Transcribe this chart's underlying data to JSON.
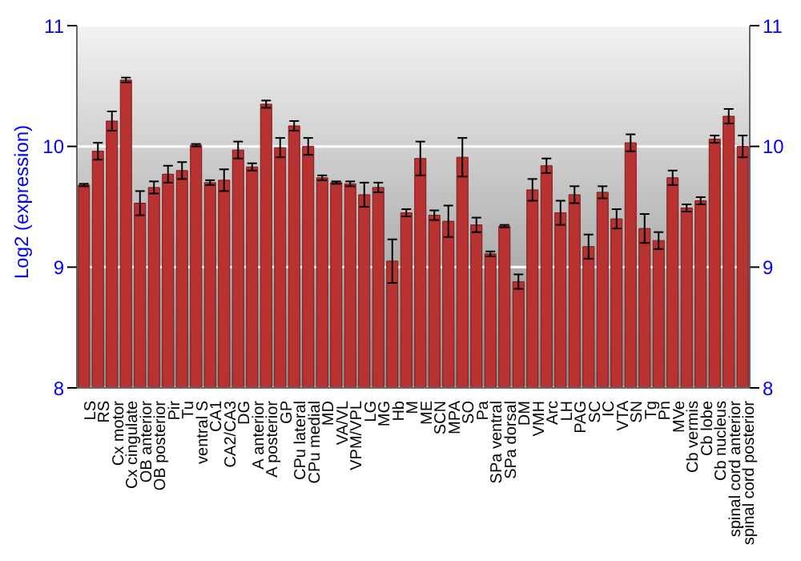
{
  "chart_data": {
    "type": "bar",
    "ylabel": "Log2 (expression)",
    "categories": [
      "LS",
      "RS",
      "Cx motor",
      "Cx cingulate",
      "OB anterior",
      "OB posterior",
      "Pir",
      "Tu",
      "ventral S",
      "CA1",
      "CA2/CA3",
      "DG",
      "A anterior",
      "A posterior",
      "GP",
      "CPu lateral",
      "CPu medial",
      "MD",
      "VA/VL",
      "VPM/VPL",
      "LG",
      "MG",
      "Hb",
      "M",
      "ME",
      "SCN",
      "MPA",
      "SO",
      "Pa",
      "SPa ventral",
      "SPa dorsal",
      "DM",
      "VMH",
      "Arc",
      "LH",
      "PAG",
      "SC",
      "IC",
      "VTA",
      "SN",
      "Tg",
      "Pn",
      "MVe",
      "Cb vermis",
      "Cb lobe",
      "Cb nucleus",
      "spinal cord anterior",
      "spinal cord posterior"
    ],
    "series": [
      {
        "color": "#b83232",
        "values": [
          9.68,
          9.96,
          10.21,
          10.55,
          9.53,
          9.66,
          9.77,
          9.8,
          10.01,
          9.7,
          9.72,
          9.97,
          9.83,
          10.35,
          9.99,
          10.17,
          10.0,
          9.74,
          9.7,
          9.69,
          9.6,
          9.66,
          9.05,
          9.45,
          9.9,
          9.43,
          9.38,
          9.91,
          9.35,
          9.11,
          9.34,
          8.88,
          9.64,
          9.84,
          9.45,
          9.6,
          9.17,
          9.62,
          9.4,
          10.03,
          9.32,
          9.22,
          9.74,
          9.49,
          9.55,
          10.06,
          10.25,
          10.0
        ],
        "errors": [
          0.01,
          0.07,
          0.08,
          0.02,
          0.1,
          0.05,
          0.07,
          0.07,
          0.01,
          0.02,
          0.09,
          0.07,
          0.03,
          0.03,
          0.08,
          0.04,
          0.07,
          0.02,
          0.01,
          0.02,
          0.1,
          0.04,
          0.18,
          0.03,
          0.14,
          0.04,
          0.13,
          0.16,
          0.06,
          0.02,
          0.01,
          0.06,
          0.09,
          0.06,
          0.1,
          0.07,
          0.1,
          0.05,
          0.08,
          0.07,
          0.12,
          0.07,
          0.06,
          0.03,
          0.03,
          0.03,
          0.06,
          0.09
        ]
      }
    ],
    "ylim": [
      8,
      11
    ],
    "yticks": [
      8,
      9,
      10,
      11
    ],
    "y2lim": [
      8,
      11
    ],
    "y2ticks": [
      8,
      9,
      10,
      11
    ],
    "grid": "y"
  }
}
